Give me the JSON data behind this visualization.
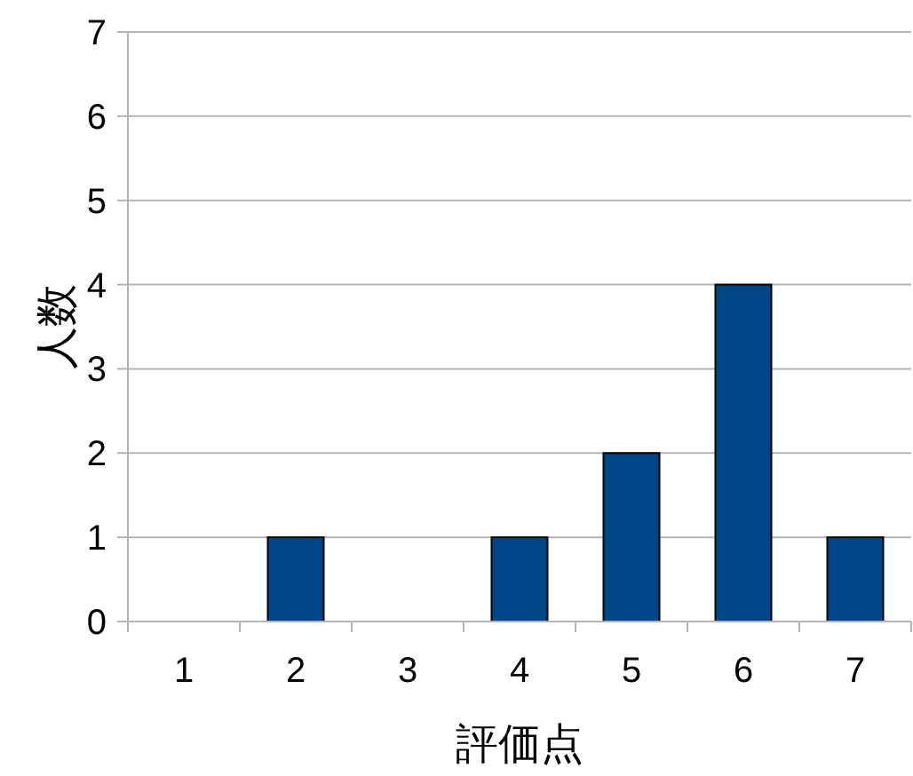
{
  "chart_data": {
    "type": "bar",
    "xlabel": "評価点",
    "ylabel": "人数",
    "categories": [
      "1",
      "2",
      "3",
      "4",
      "5",
      "6",
      "7"
    ],
    "values": [
      0,
      1,
      0,
      1,
      2,
      4,
      1
    ],
    "color": "#004586",
    "ylim": [
      0,
      7
    ],
    "yticks": [
      0,
      1,
      2,
      3,
      4,
      5,
      6,
      7
    ],
    "grid": "y"
  }
}
